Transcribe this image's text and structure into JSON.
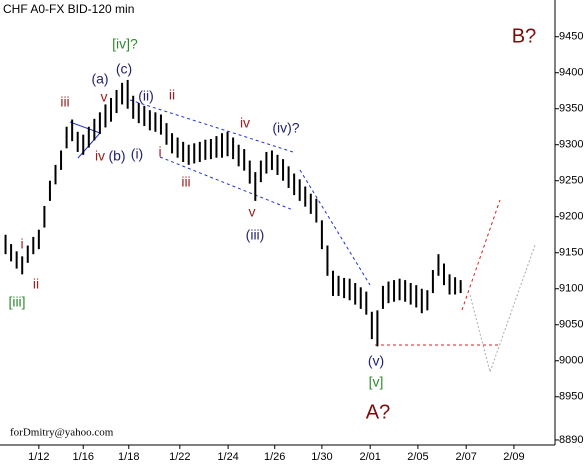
{
  "chart_data": {
    "type": "range-bar",
    "title": "CHF A0-FX BID-120 min",
    "footer": "forDmitry@yahoo.com",
    "color": "#000000",
    "x": [
      1,
      2,
      3,
      4,
      5,
      6,
      7,
      8,
      9,
      10,
      11,
      12,
      13,
      14,
      15,
      16,
      17,
      18,
      19,
      20,
      21,
      22,
      23,
      24,
      25,
      26,
      27,
      28,
      29,
      30,
      31,
      32,
      33,
      34,
      35,
      36,
      37,
      38,
      39,
      40,
      41,
      42,
      43,
      44,
      45,
      46,
      47,
      48,
      49,
      50,
      51,
      52,
      53,
      54,
      55,
      56,
      57,
      58,
      59,
      60,
      61,
      62,
      63,
      64,
      65,
      66,
      67,
      68,
      69,
      70,
      71,
      72,
      73,
      74,
      75,
      76,
      77,
      78,
      79,
      80,
      81,
      82,
      83
    ],
    "series": [
      {
        "name": "high",
        "values": [
          9175,
          9162,
          9152,
          9145,
          9160,
          9172,
          9182,
          9215,
          9250,
          9272,
          9292,
          9325,
          9335,
          9318,
          9314,
          9325,
          9336,
          9345,
          9356,
          9365,
          9376,
          9386,
          9390,
          9368,
          9358,
          9354,
          9348,
          9345,
          9342,
          9330,
          9316,
          9310,
          9304,
          9300,
          9302,
          9304,
          9307,
          9308,
          9312,
          9316,
          9318,
          9310,
          9300,
          9294,
          9278,
          9262,
          9278,
          9290,
          9292,
          9286,
          9280,
          9270,
          9260,
          9252,
          9242,
          9232,
          9225,
          9195,
          9160,
          9125,
          9118,
          9115,
          9114,
          9108,
          9102,
          9096,
          9068,
          9070,
          9104,
          9110,
          9112,
          9114,
          9112,
          9108,
          9105,
          9100,
          9098,
          9126,
          9148,
          9135,
          9120,
          9116,
          9112
        ]
      },
      {
        "name": "low",
        "values": [
          9148,
          9138,
          9128,
          9120,
          9136,
          9148,
          9155,
          9185,
          9222,
          9245,
          9265,
          9295,
          9305,
          9290,
          9286,
          9296,
          9306,
          9315,
          9324,
          9332,
          9344,
          9356,
          9350,
          9336,
          9330,
          9326,
          9320,
          9318,
          9314,
          9300,
          9288,
          9282,
          9276,
          9272,
          9274,
          9276,
          9279,
          9280,
          9282,
          9282,
          9284,
          9280,
          9270,
          9264,
          9246,
          9222,
          9248,
          9260,
          9265,
          9258,
          9250,
          9240,
          9230,
          9222,
          9214,
          9204,
          9192,
          9155,
          9118,
          9090,
          9090,
          9087,
          9084,
          9078,
          9072,
          9064,
          9030,
          9020,
          9072,
          9080,
          9082,
          9084,
          9082,
          9078,
          9074,
          9066,
          9070,
          9094,
          9118,
          9105,
          9092,
          9092,
          9094
        ]
      }
    ],
    "xlim": [
      0,
      100
    ],
    "xticks": [
      {
        "value": 7,
        "label": "1/12"
      },
      {
        "value": 15,
        "label": "1/16"
      },
      {
        "value": 23.2,
        "label": "1/18"
      },
      {
        "value": 32.4,
        "label": "1/22"
      },
      {
        "value": 41.1,
        "label": "1/24"
      },
      {
        "value": 49.5,
        "label": "1/26"
      },
      {
        "value": 58,
        "label": "1/30"
      },
      {
        "value": 66.7,
        "label": "2/01"
      },
      {
        "value": 75.3,
        "label": "2/05"
      },
      {
        "value": 84,
        "label": "2/07"
      },
      {
        "value": 92.6,
        "label": "2/09"
      }
    ],
    "ylim": [
      8883,
      9501
    ],
    "yticks": [
      9450,
      9400,
      9350,
      9300,
      9250,
      9200,
      9150,
      9100,
      9050,
      9000,
      8950,
      8890
    ],
    "annotations": [
      "[iv]?",
      "(c)",
      "(a)",
      "v",
      "(ii)",
      "ii",
      "iii",
      "iv",
      "(iv)?",
      "iv",
      "(b)",
      "(i)",
      "i",
      "iii",
      "v",
      "(iii)",
      "i",
      "ii",
      "[iii]",
      "(v)",
      "[v]",
      "A?",
      "B?"
    ]
  }
}
